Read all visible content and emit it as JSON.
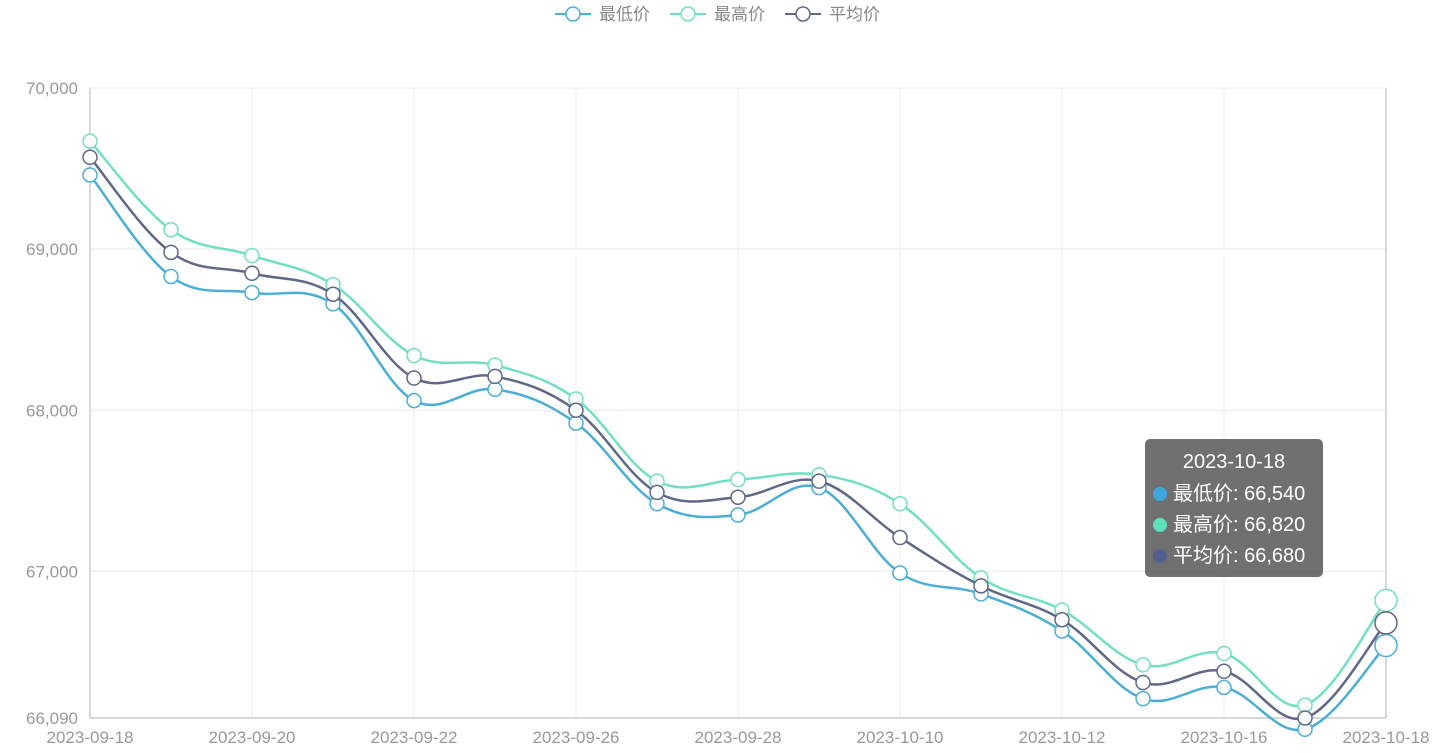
{
  "chart_data": {
    "type": "line",
    "title": "",
    "xlabel": "",
    "ylabel": "",
    "x": [
      "2023-09-18",
      "2023-09-19",
      "2023-09-20",
      "2023-09-21",
      "2023-09-22",
      "2023-09-25",
      "2023-09-26",
      "2023-09-27",
      "2023-09-28",
      "2023-10-09",
      "2023-10-10",
      "2023-10-11",
      "2023-10-12",
      "2023-10-13",
      "2023-10-16",
      "2023-10-17",
      "2023-10-18"
    ],
    "x_tick_labels": [
      "2023-09-18",
      "2023-09-20",
      "2023-09-22",
      "2023-09-26",
      "2023-09-28",
      "2023-10-10",
      "2023-10-12",
      "2023-10-16",
      "2023-10-18"
    ],
    "y_tick_labels": [
      "70,000",
      "69,000",
      "68,000",
      "67,000",
      "66,090"
    ],
    "y_ticks": [
      70000,
      69000,
      68000,
      67000,
      66090
    ],
    "ylim": [
      66090,
      70000
    ],
    "grid": true,
    "legend_position": "top-center",
    "smooth": true,
    "series": [
      {
        "name": "最低价",
        "color": "#4aaed6",
        "values": [
          69460,
          68830,
          68730,
          68660,
          68060,
          68130,
          67920,
          67420,
          67350,
          67520,
          66990,
          66860,
          66630,
          66210,
          66280,
          66020,
          66540
        ]
      },
      {
        "name": "最高价",
        "color": "#72dfc2",
        "values": [
          69670,
          69120,
          68960,
          68780,
          68340,
          68280,
          68070,
          67560,
          67570,
          67600,
          67420,
          66960,
          66760,
          66420,
          66490,
          66170,
          66820
        ]
      },
      {
        "name": "平均价",
        "color": "#5f6886",
        "values": [
          69570,
          68980,
          68850,
          68720,
          68200,
          68210,
          68000,
          67490,
          67460,
          67560,
          67210,
          66910,
          66700,
          66310,
          66380,
          66090,
          66680
        ]
      }
    ],
    "tooltip": {
      "title": "2023-10-18",
      "rows": [
        {
          "text": "最低价: 66,540",
          "color": "#3fa7e0"
        },
        {
          "text": "最高价: 66,820",
          "color": "#5fe0bd"
        },
        {
          "text": "平均价: 66,680",
          "color": "#545f8f"
        }
      ]
    }
  }
}
